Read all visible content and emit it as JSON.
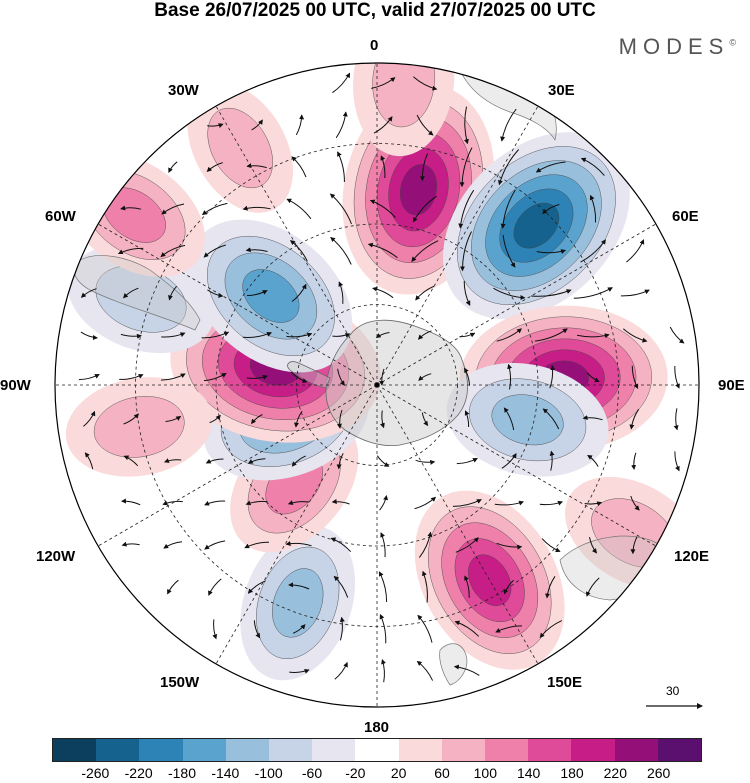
{
  "title": "Base 26/07/2025 00 UTC, valid 27/07/2025 00 UTC",
  "brand": "MODES",
  "brand_mark": "©",
  "longitude_labels": {
    "n": "0",
    "ne30": "30E",
    "ne60": "60E",
    "e": "90E",
    "se120": "120E",
    "se150": "150E",
    "s": "180",
    "sw150": "150W",
    "sw120": "120W",
    "w": "90W",
    "nw60": "60W",
    "nw30": "30W"
  },
  "colorbar": {
    "colors": [
      "#0c3f5e",
      "#15628e",
      "#2d83b5",
      "#5ba3cf",
      "#98bfdc",
      "#c7d3e6",
      "#e6e5f0",
      "#ffffff",
      "#fadada",
      "#f5b2c2",
      "#ee80aa",
      "#df4b98",
      "#c61d86",
      "#941078",
      "#5b0f6e"
    ],
    "tick_labels": [
      "-260",
      "-220",
      "-180",
      "-140",
      "-100",
      "-60",
      "-20",
      "20",
      "60",
      "100",
      "140",
      "180",
      "220",
      "260"
    ]
  },
  "vector_scale": {
    "value": "30"
  },
  "anomaly_centers": [
    {
      "lon": 12,
      "colat": 0.62,
      "value": 240
    },
    {
      "lon": 45,
      "colat": 0.7,
      "value": -250
    },
    {
      "lon": 88,
      "colat": 0.58,
      "value": 230
    },
    {
      "lon": 103,
      "colat": 0.48,
      "value": -120
    },
    {
      "lon": 150,
      "colat": 0.7,
      "value": 190
    },
    {
      "lon": -160,
      "colat": 0.72,
      "value": -110
    },
    {
      "lon": -140,
      "colat": 0.4,
      "value": 100
    },
    {
      "lon": -110,
      "colat": 0.3,
      "value": -140
    },
    {
      "lon": -80,
      "colat": 0.32,
      "value": 240
    },
    {
      "lon": -50,
      "colat": 0.43,
      "value": -170
    },
    {
      "lon": -70,
      "colat": 0.78,
      "value": -90
    },
    {
      "lon": -55,
      "colat": 0.92,
      "value": 100
    },
    {
      "lon": -100,
      "colat": 0.75,
      "value": 80
    },
    {
      "lon": -30,
      "colat": 0.85,
      "value": 60
    },
    {
      "lon": 120,
      "colat": 0.92,
      "value": 80
    },
    {
      "lon": 5,
      "colat": 0.95,
      "value": 90
    }
  ]
}
